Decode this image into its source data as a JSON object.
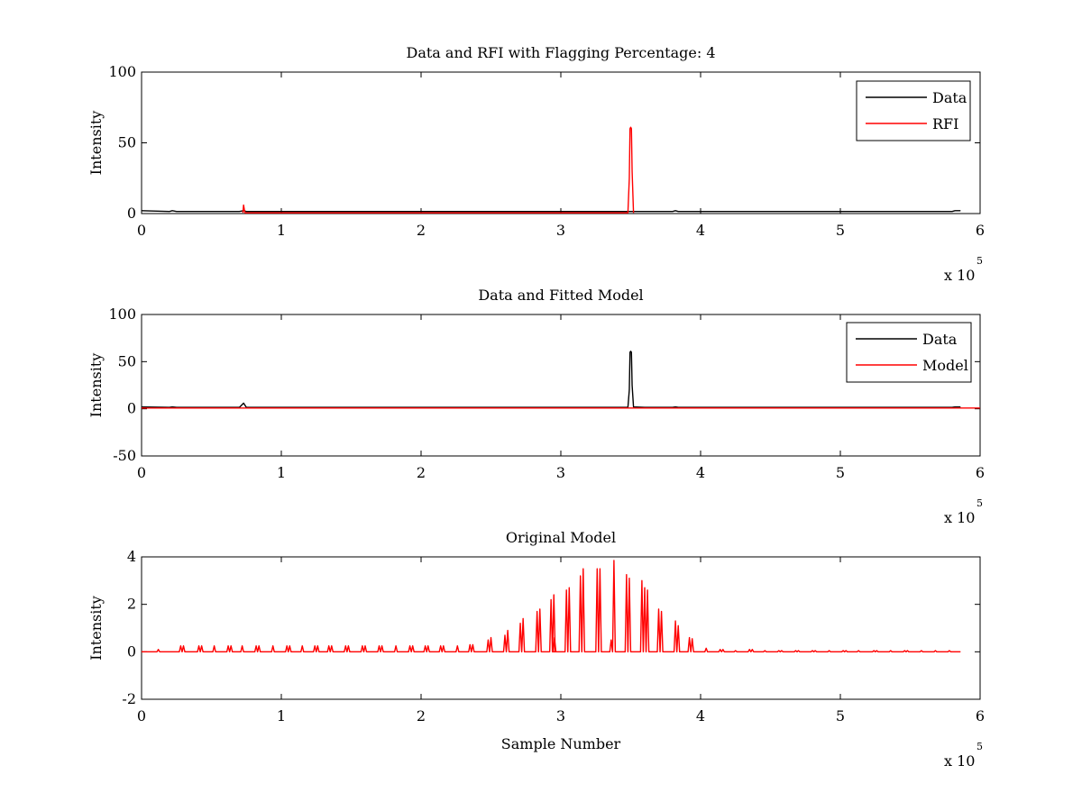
{
  "colors": {
    "data": "#000000",
    "rfi": "#ff0000",
    "model": "#ff0000",
    "background": "#ffffff",
    "axes": "#000000"
  },
  "chart_data": [
    {
      "type": "line",
      "title": "Data and RFI with Flagging Percentage: 4",
      "xlabel": "",
      "ylabel": "Intensity",
      "xlim": [
        0,
        6
      ],
      "ylim": [
        0,
        100
      ],
      "xticks": [
        "0",
        "1",
        "2",
        "3",
        "4",
        "5",
        "6"
      ],
      "yticks": [
        "0",
        "50",
        "100"
      ],
      "x_multiplier": {
        "base": "x 10",
        "exponent": "5"
      },
      "grid": false,
      "legend": {
        "position": "top-right",
        "entries": [
          "Data",
          "RFI"
        ]
      },
      "series": [
        {
          "name": "Data",
          "color": "#000000",
          "x": [
            0,
            0.2,
            0.22,
            0.25,
            0.7,
            0.73,
            0.75,
            0.8,
            2.6,
            2.95,
            3.0,
            3.49,
            3.5,
            3.51,
            3.8,
            3.82,
            3.84,
            5.05,
            5.8,
            5.82,
            5.86
          ],
          "y": [
            2,
            1.5,
            2,
            1.5,
            1.5,
            2,
            1.5,
            1.5,
            1.5,
            1.5,
            1.5,
            1.5,
            1.5,
            1.5,
            1.5,
            2,
            1.5,
            1.5,
            1.5,
            2,
            2
          ]
        },
        {
          "name": "RFI",
          "color": "#ff0000",
          "x": [
            0.725,
            0.73,
            0.735,
            0.74,
            3.48,
            3.49,
            3.495,
            3.5,
            3.505,
            3.51,
            3.52
          ],
          "y": [
            0.5,
            6,
            3,
            0.5,
            0.5,
            25,
            60,
            61,
            60,
            30,
            0.5
          ]
        }
      ]
    },
    {
      "type": "line",
      "title": "Data and Fitted Model",
      "xlabel": "",
      "ylabel": "Intensity",
      "xlim": [
        0,
        6
      ],
      "ylim": [
        -50,
        100
      ],
      "xticks": [
        "0",
        "1",
        "2",
        "3",
        "4",
        "5",
        "6"
      ],
      "yticks": [
        "-50",
        "0",
        "50",
        "100"
      ],
      "x_multiplier": {
        "base": "x 10",
        "exponent": "5"
      },
      "grid": false,
      "legend": {
        "position": "top-right",
        "entries": [
          "Data",
          "Model"
        ]
      },
      "series": [
        {
          "name": "Data",
          "color": "#000000",
          "x": [
            0,
            0.2,
            0.22,
            0.25,
            0.7,
            0.73,
            0.75,
            0.8,
            2.6,
            2.95,
            3.0,
            3.48,
            3.49,
            3.495,
            3.5,
            3.505,
            3.51,
            3.52,
            3.6,
            3.8,
            3.82,
            3.84,
            5.8,
            5.82,
            5.86
          ],
          "y": [
            2,
            1.5,
            2,
            1.5,
            1.5,
            6,
            1.5,
            1.5,
            1.5,
            1.5,
            1.5,
            1.5,
            20,
            60,
            61,
            60,
            25,
            2,
            1.5,
            1.5,
            2,
            1.5,
            1.5,
            2,
            2
          ]
        },
        {
          "name": "Model",
          "color": "#ff0000",
          "x": [
            0,
            6
          ],
          "y": [
            0.8,
            0.8
          ]
        }
      ]
    },
    {
      "type": "line",
      "title": "Original Model",
      "xlabel": "Sample Number",
      "ylabel": "Intensity",
      "xlim": [
        0,
        6
      ],
      "ylim": [
        -2,
        4
      ],
      "xticks": [
        "0",
        "1",
        "2",
        "3",
        "4",
        "5",
        "6"
      ],
      "yticks": [
        "-2",
        "0",
        "2",
        "4"
      ],
      "x_multiplier": {
        "base": "x 10",
        "exponent": "5"
      },
      "grid": false,
      "legend": null,
      "series": [
        {
          "color": "#ff0000",
          "baseline": 0,
          "x_end": 5.86,
          "peaks": [
            [
              0.12,
              0.1
            ],
            [
              0.28,
              0.25
            ],
            [
              0.3,
              0.25
            ],
            [
              0.41,
              0.25
            ],
            [
              0.43,
              0.25
            ],
            [
              0.52,
              0.25
            ],
            [
              0.62,
              0.25
            ],
            [
              0.64,
              0.25
            ],
            [
              0.72,
              0.25
            ],
            [
              0.82,
              0.25
            ],
            [
              0.84,
              0.25
            ],
            [
              0.94,
              0.25
            ],
            [
              1.04,
              0.25
            ],
            [
              1.06,
              0.25
            ],
            [
              1.15,
              0.25
            ],
            [
              1.24,
              0.25
            ],
            [
              1.26,
              0.25
            ],
            [
              1.34,
              0.25
            ],
            [
              1.36,
              0.25
            ],
            [
              1.46,
              0.25
            ],
            [
              1.48,
              0.25
            ],
            [
              1.58,
              0.25
            ],
            [
              1.6,
              0.25
            ],
            [
              1.7,
              0.25
            ],
            [
              1.72,
              0.25
            ],
            [
              1.82,
              0.25
            ],
            [
              1.92,
              0.25
            ],
            [
              1.94,
              0.25
            ],
            [
              2.03,
              0.25
            ],
            [
              2.05,
              0.25
            ],
            [
              2.14,
              0.25
            ],
            [
              2.16,
              0.25
            ],
            [
              2.26,
              0.25
            ],
            [
              2.35,
              0.3
            ],
            [
              2.37,
              0.3
            ],
            [
              2.48,
              0.5
            ],
            [
              2.5,
              0.6
            ],
            [
              2.6,
              0.7
            ],
            [
              2.62,
              0.9
            ],
            [
              2.71,
              1.2
            ],
            [
              2.73,
              1.4
            ],
            [
              2.83,
              1.7
            ],
            [
              2.85,
              1.8
            ],
            [
              2.93,
              2.2
            ],
            [
              2.95,
              2.4
            ],
            [
              2.955,
              0.6
            ],
            [
              3.04,
              2.6
            ],
            [
              3.06,
              2.7
            ],
            [
              3.14,
              3.2
            ],
            [
              3.16,
              3.5
            ],
            [
              3.26,
              3.5
            ],
            [
              3.28,
              3.5
            ],
            [
              3.36,
              0.5
            ],
            [
              3.38,
              3.85
            ],
            [
              3.47,
              3.25
            ],
            [
              3.49,
              3.1
            ],
            [
              3.58,
              3.0
            ],
            [
              3.6,
              2.7
            ],
            [
              3.62,
              2.6
            ],
            [
              3.7,
              1.8
            ],
            [
              3.72,
              1.7
            ],
            [
              3.82,
              1.3
            ],
            [
              3.84,
              1.1
            ],
            [
              3.92,
              0.6
            ],
            [
              3.94,
              0.55
            ],
            [
              4.04,
              0.15
            ],
            [
              4.14,
              0.1
            ],
            [
              4.16,
              0.1
            ],
            [
              4.25,
              0.05
            ],
            [
              4.35,
              0.1
            ],
            [
              4.37,
              0.1
            ],
            [
              4.46,
              0.05
            ],
            [
              4.56,
              0.05
            ],
            [
              4.58,
              0.05
            ],
            [
              4.68,
              0.05
            ],
            [
              4.7,
              0.05
            ],
            [
              4.8,
              0.05
            ],
            [
              4.82,
              0.05
            ],
            [
              4.92,
              0.05
            ],
            [
              5.02,
              0.05
            ],
            [
              5.04,
              0.05
            ],
            [
              5.13,
              0.05
            ],
            [
              5.24,
              0.05
            ],
            [
              5.26,
              0.05
            ],
            [
              5.36,
              0.05
            ],
            [
              5.46,
              0.05
            ],
            [
              5.48,
              0.05
            ],
            [
              5.58,
              0.05
            ],
            [
              5.68,
              0.05
            ],
            [
              5.78,
              0.05
            ]
          ]
        }
      ]
    }
  ]
}
